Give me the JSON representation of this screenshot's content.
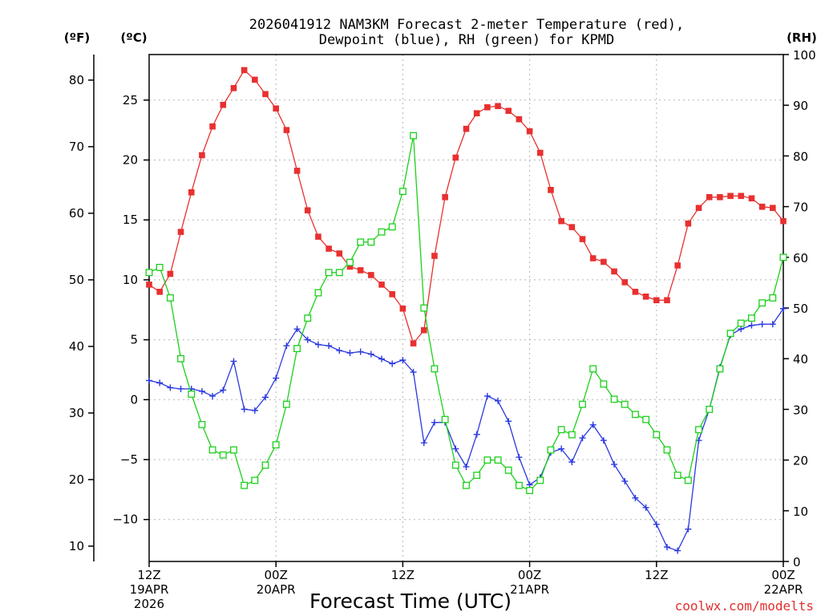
{
  "chart_data": {
    "type": "line",
    "title": "2026041912 NAM3KM Forecast 2-meter Temperature (red),",
    "subtitle": "Dewpoint (blue), RH (green) for KPMD",
    "xlabel": "Forecast Time (UTC)",
    "credit": "coolwx.com/modelts",
    "units": {
      "left_f": "(ºF)",
      "left_c": "(ºC)",
      "right_rh": "(RH)"
    },
    "xlim": [
      0,
      60
    ],
    "x_ticks": [
      {
        "x": 0,
        "line1": "12Z",
        "line2": "19APR",
        "line3": "2026"
      },
      {
        "x": 12,
        "line1": "00Z",
        "line2": "20APR",
        "line3": ""
      },
      {
        "x": 24,
        "line1": "12Z",
        "line2": "",
        "line3": ""
      },
      {
        "x": 36,
        "line1": "00Z",
        "line2": "21APR",
        "line3": ""
      },
      {
        "x": 48,
        "line1": "12Z",
        "line2": "",
        "line3": ""
      },
      {
        "x": 60,
        "line1": "00Z",
        "line2": "22APR",
        "line3": ""
      }
    ],
    "y_celsius": {
      "lim": [
        -13.5,
        28.8
      ],
      "ticks": [
        -10,
        -5,
        0,
        5,
        10,
        15,
        20,
        25
      ]
    },
    "y_fahrenheit": {
      "ticks": [
        10,
        20,
        30,
        40,
        50,
        60,
        70,
        80
      ]
    },
    "y_rh": {
      "lim": [
        0,
        100
      ],
      "ticks": [
        0,
        10,
        20,
        30,
        40,
        50,
        60,
        70,
        80,
        90,
        100
      ]
    },
    "x": [
      0,
      1,
      2,
      3,
      4,
      5,
      6,
      7,
      8,
      9,
      10,
      11,
      12,
      13,
      14,
      15,
      16,
      17,
      18,
      19,
      20,
      21,
      22,
      23,
      24,
      25,
      26,
      27,
      28,
      29,
      30,
      31,
      32,
      33,
      34,
      35,
      36,
      37,
      38,
      39,
      40,
      41,
      42,
      43,
      44,
      45,
      46,
      47,
      48,
      49,
      50,
      51,
      52,
      53,
      54,
      55,
      56,
      57,
      58,
      59,
      60
    ],
    "series": [
      {
        "name": "2-meter Temperature",
        "axis": "celsius",
        "color": "#e83030",
        "marker": "filled-square",
        "values": [
          9.6,
          9.0,
          10.5,
          14.0,
          17.3,
          20.4,
          22.8,
          24.6,
          26.0,
          27.5,
          26.7,
          25.5,
          24.3,
          22.5,
          19.1,
          15.8,
          13.6,
          12.6,
          12.2,
          11.1,
          10.8,
          10.4,
          9.6,
          8.8,
          7.6,
          4.7,
          5.8,
          12.0,
          16.9,
          20.2,
          22.6,
          23.9,
          24.4,
          24.5,
          24.1,
          23.4,
          22.4,
          20.6,
          17.5,
          14.9,
          14.4,
          13.4,
          11.8,
          11.5,
          10.7,
          9.8,
          9.0,
          8.6,
          8.3,
          8.3,
          11.2,
          14.7,
          16.0,
          16.9,
          16.9,
          17.0,
          17.0,
          16.8,
          16.1,
          16.0,
          14.9
        ]
      },
      {
        "name": "Dewpoint",
        "axis": "celsius",
        "color": "#2a38e0",
        "marker": "plus",
        "values": [
          1.6,
          1.4,
          1.0,
          0.9,
          0.9,
          0.7,
          0.3,
          0.8,
          3.2,
          -0.8,
          -0.9,
          0.2,
          1.8,
          4.5,
          5.9,
          5.0,
          4.6,
          4.5,
          4.1,
          3.9,
          4.0,
          3.8,
          3.4,
          3.0,
          3.3,
          2.3,
          -3.6,
          -1.9,
          -1.9,
          -4.1,
          -5.6,
          -2.9,
          0.3,
          -0.1,
          -1.8,
          -4.8,
          -7.1,
          -6.5,
          -4.4,
          -4.1,
          -5.2,
          -3.2,
          -2.1,
          -3.4,
          -5.4,
          -6.8,
          -8.2,
          -9.0,
          -10.4,
          -12.3,
          -12.6,
          -10.8,
          -3.4,
          -0.8,
          2.7,
          5.4,
          5.9,
          6.2,
          6.3,
          6.3,
          7.6
        ]
      },
      {
        "name": "RH",
        "axis": "rh",
        "color": "#1cd01c",
        "marker": "open-square",
        "values": [
          57,
          58,
          52,
          40,
          33,
          27,
          22,
          21,
          22,
          15,
          16,
          19,
          23,
          31,
          42,
          48,
          53,
          57,
          57,
          59,
          63,
          63,
          65,
          66,
          73,
          84,
          50,
          38,
          28,
          19,
          15,
          17,
          20,
          20,
          18,
          15,
          14,
          16,
          22,
          26,
          25,
          31,
          38,
          35,
          32,
          31,
          29,
          28,
          25,
          22,
          17,
          16,
          26,
          30,
          38,
          45,
          47,
          48,
          51,
          52,
          60
        ]
      }
    ]
  }
}
